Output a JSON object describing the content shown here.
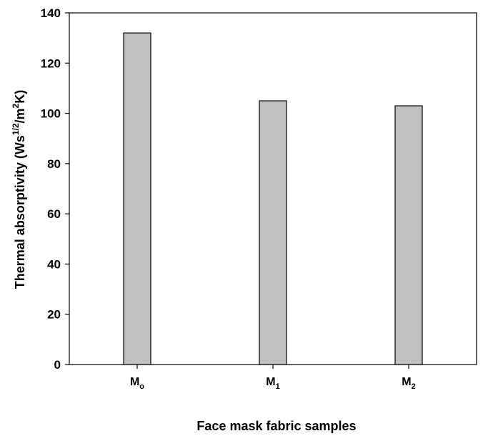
{
  "chart_data": {
    "type": "bar",
    "categories": [
      {
        "base": "M",
        "sub": "o"
      },
      {
        "base": "M",
        "sub": "1"
      },
      {
        "base": "M",
        "sub": "2"
      }
    ],
    "values": [
      132,
      105,
      103
    ],
    "xlabel": "Face mask fabric samples",
    "ylabel": {
      "main": "Thermal absorptivity (Ws",
      "sup1": "1/2",
      "mid": "/m",
      "sup2": "2",
      "end": "K)"
    },
    "ylim": [
      0,
      140
    ],
    "yticks": [
      0,
      20,
      40,
      60,
      80,
      100,
      120,
      140
    ],
    "grid": false,
    "legend": "none",
    "colors": {
      "bar_fill": "#c0c0c0",
      "bar_stroke": "#000000",
      "axis": "#000000"
    }
  }
}
